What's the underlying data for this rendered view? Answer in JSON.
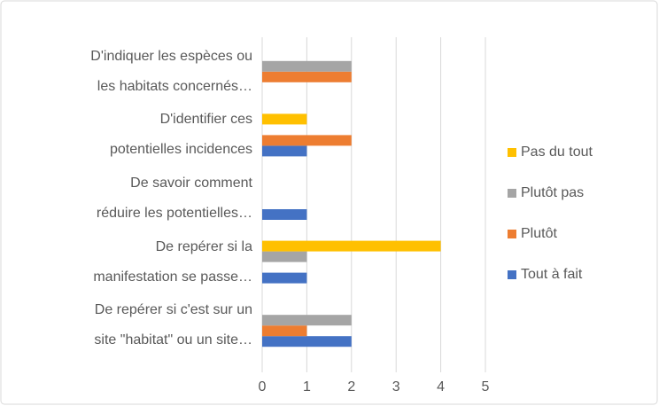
{
  "chart_data": {
    "type": "barh",
    "categories": [
      "D'indiquer les espèces ou\nles habitats concernés…",
      "D'identifier ces\npotentielles incidences",
      "De savoir comment\nréduire les potentielles…",
      "De repérer si la\nmanifestation se passe…",
      "De repérer si c'est sur un\nsite \"habitat\" ou un site…"
    ],
    "series": [
      {
        "name": "Tout à fait",
        "color": "#4472c4",
        "values": [
          0,
          1,
          1,
          1,
          2
        ]
      },
      {
        "name": "Plutôt",
        "color": "#ed7d31",
        "values": [
          2,
          2,
          0,
          0,
          1
        ]
      },
      {
        "name": "Plutôt pas",
        "color": "#a5a5a5",
        "values": [
          2,
          0,
          0,
          1,
          2
        ]
      },
      {
        "name": "Pas du tout",
        "color": "#ffc000",
        "values": [
          0,
          1,
          0,
          4,
          0
        ]
      }
    ],
    "xlim": [
      0,
      5
    ],
    "xticks": [
      0,
      1,
      2,
      3,
      4,
      5
    ],
    "grid": true,
    "legend": "right"
  }
}
